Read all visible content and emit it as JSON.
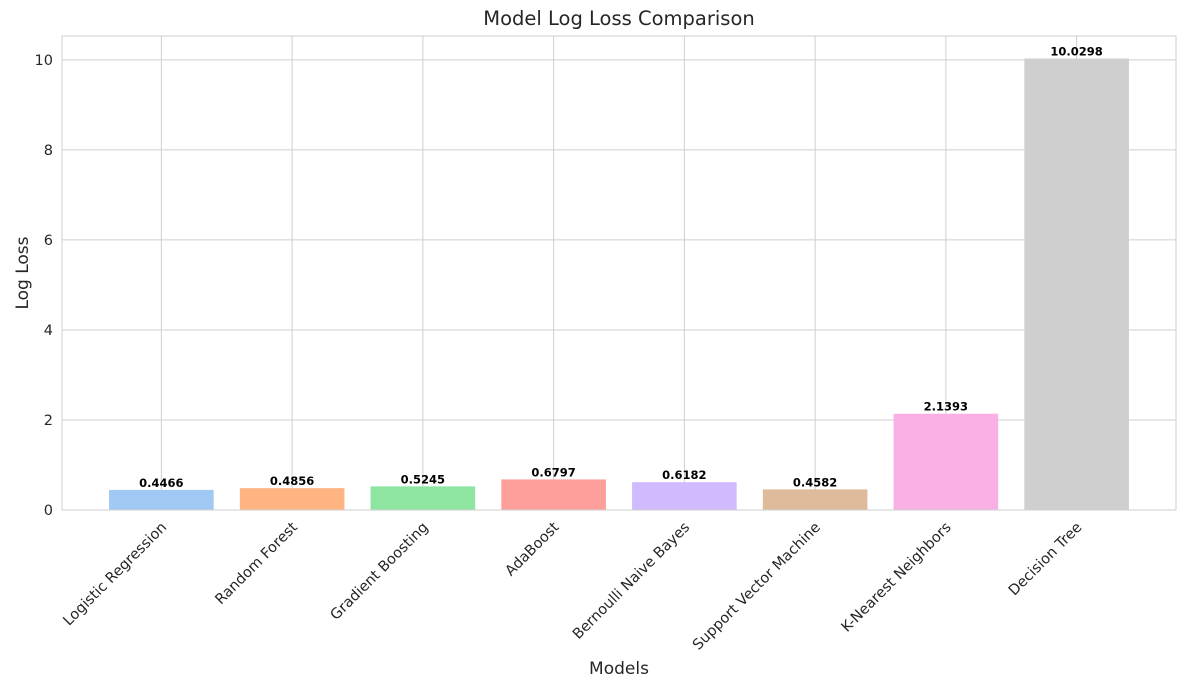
{
  "chart_data": {
    "type": "bar",
    "title": "Model Log Loss Comparison",
    "xlabel": "Models",
    "ylabel": "Log Loss",
    "categories": [
      "Logistic Regression",
      "Random Forest",
      "Gradient Boosting",
      "AdaBoost",
      "Bernoulli Naive Bayes",
      "Support Vector Machine",
      "K-Nearest Neighbors",
      "Decision Tree"
    ],
    "values": [
      0.4466,
      0.4856,
      0.5245,
      0.6797,
      0.6182,
      0.4582,
      2.1393,
      10.0298
    ],
    "data_labels": [
      "0.4466",
      "0.4856",
      "0.5245",
      "0.6797",
      "0.6182",
      "0.4582",
      "2.1393",
      "10.0298"
    ],
    "bar_colors": [
      "#a1c9f4",
      "#ffb482",
      "#8de5a1",
      "#ff9f9b",
      "#d0bbff",
      "#debb9b",
      "#fab0e4",
      "#cfcfcf"
    ],
    "yticks": [
      0,
      2,
      4,
      6,
      8,
      10
    ],
    "ytick_labels": [
      "0",
      "2",
      "4",
      "6",
      "8",
      "10"
    ],
    "ylim": [
      0,
      10.53
    ],
    "grid": true,
    "legend": "none"
  }
}
